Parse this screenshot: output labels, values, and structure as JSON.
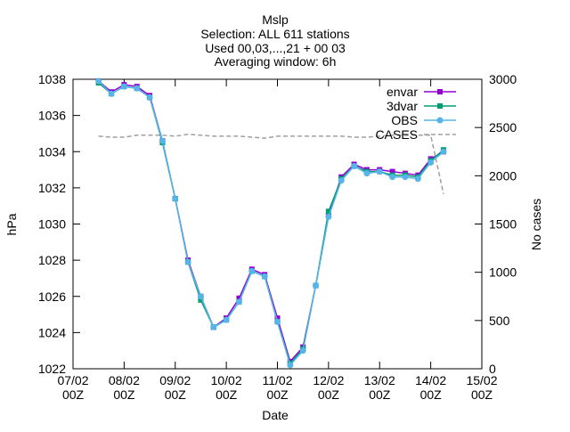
{
  "chart_data": {
    "type": "line",
    "title_lines": [
      "Mslp",
      "Selection: ALL    611 stations",
      "Used 00,03,...,21 + 00 03",
      "Averaging window:  6h"
    ],
    "xlabel": "Date",
    "ylabel": "hPa",
    "y2label": "No cases",
    "x_ticks": [
      {
        "t": 0,
        "l1": "07/02",
        "l2": "00Z"
      },
      {
        "t": 1,
        "l1": "08/02",
        "l2": "00Z"
      },
      {
        "t": 2,
        "l1": "09/02",
        "l2": "00Z"
      },
      {
        "t": 3,
        "l1": "10/02",
        "l2": "00Z"
      },
      {
        "t": 4,
        "l1": "11/02",
        "l2": "00Z"
      },
      {
        "t": 5,
        "l1": "12/02",
        "l2": "00Z"
      },
      {
        "t": 6,
        "l1": "13/02",
        "l2": "00Z"
      },
      {
        "t": 7,
        "l1": "14/02",
        "l2": "00Z"
      },
      {
        "t": 8,
        "l1": "15/02",
        "l2": "00Z"
      }
    ],
    "xlim": [
      0,
      8
    ],
    "ylim": [
      1022,
      1038
    ],
    "y_ticks": [
      1022,
      1024,
      1026,
      1028,
      1030,
      1032,
      1034,
      1036,
      1038
    ],
    "y2lim": [
      0,
      3000
    ],
    "y2_ticks": [
      0,
      500,
      1000,
      1500,
      2000,
      2500,
      3000
    ],
    "legend_position": "top-right",
    "series": [
      {
        "name": "envar",
        "color": "#9400d3",
        "marker": "square",
        "axis": "y",
        "x": [
          0.5,
          0.75,
          1.0,
          1.25,
          1.5,
          1.75,
          2.0,
          2.25,
          2.5,
          2.75,
          3.0,
          3.25,
          3.5,
          3.75,
          4.0,
          4.25,
          4.5,
          4.75,
          5.0,
          5.25,
          5.5,
          5.75,
          6.0,
          6.25,
          6.5,
          6.75,
          7.0,
          7.25
        ],
        "values": [
          1037.9,
          1037.3,
          1037.7,
          1037.6,
          1037.1,
          1034.6,
          1031.4,
          1028.0,
          1026.0,
          1024.3,
          1024.8,
          1025.9,
          1027.5,
          1027.2,
          1024.8,
          1022.4,
          1023.2,
          1026.6,
          1030.5,
          1032.6,
          1033.3,
          1033.0,
          1033.0,
          1032.9,
          1032.8,
          1032.7,
          1033.6,
          1034.0
        ]
      },
      {
        "name": "3dvar",
        "color": "#009e73",
        "marker": "square",
        "axis": "y",
        "x": [
          0.5,
          0.75,
          1.0,
          1.25,
          1.5,
          1.75,
          2.0,
          2.25,
          2.5,
          2.75,
          3.0,
          3.25,
          3.5,
          3.75,
          4.0,
          4.25,
          4.5,
          4.75,
          5.0,
          5.25,
          5.5,
          5.75,
          6.0,
          6.25,
          6.5,
          6.75,
          7.0,
          7.25
        ],
        "values": [
          1037.8,
          1037.2,
          1037.6,
          1037.5,
          1037.0,
          1034.5,
          1031.4,
          1027.9,
          1025.8,
          1024.3,
          1024.7,
          1025.7,
          1027.4,
          1027.1,
          1024.6,
          1022.3,
          1023.1,
          1026.6,
          1030.7,
          1032.5,
          1033.2,
          1032.9,
          1032.9,
          1032.7,
          1032.7,
          1032.6,
          1033.5,
          1034.1
        ]
      },
      {
        "name": "OBS",
        "color": "#56b4e9",
        "marker": "circle",
        "axis": "y",
        "x": [
          0.5,
          0.75,
          1.0,
          1.25,
          1.5,
          1.75,
          2.0,
          2.25,
          2.5,
          2.75,
          3.0,
          3.25,
          3.5,
          3.75,
          4.0,
          4.25,
          4.5,
          4.75,
          5.0,
          5.25,
          5.5,
          5.75,
          6.0,
          6.25,
          6.5,
          6.75,
          7.0,
          7.25
        ],
        "values": [
          1037.9,
          1037.2,
          1037.6,
          1037.5,
          1037.0,
          1034.6,
          1031.4,
          1027.9,
          1026.0,
          1024.3,
          1024.7,
          1025.7,
          1027.4,
          1027.1,
          1024.6,
          1022.2,
          1023.0,
          1026.6,
          1030.4,
          1032.4,
          1033.2,
          1032.8,
          1032.9,
          1032.6,
          1032.6,
          1032.5,
          1033.4,
          1034.0
        ]
      },
      {
        "name": "CASES",
        "color": "#a0a0a0",
        "dash": true,
        "axis": "y2",
        "x": [
          0.5,
          0.75,
          1.0,
          1.25,
          1.5,
          1.75,
          2.0,
          2.25,
          2.5,
          2.75,
          3.0,
          3.25,
          3.5,
          3.75,
          4.0,
          4.25,
          4.5,
          4.75,
          5.0,
          5.25,
          5.5,
          5.75,
          6.0,
          6.25,
          6.5,
          6.75,
          7.0,
          7.25
        ],
        "values": [
          2410,
          2400,
          2400,
          2420,
          2420,
          2420,
          2410,
          2430,
          2420,
          2410,
          2410,
          2410,
          2400,
          2390,
          2410,
          2410,
          2410,
          2410,
          2410,
          2410,
          2400,
          2400,
          2410,
          2420,
          2420,
          2420,
          2420,
          1810
        ]
      }
    ]
  }
}
